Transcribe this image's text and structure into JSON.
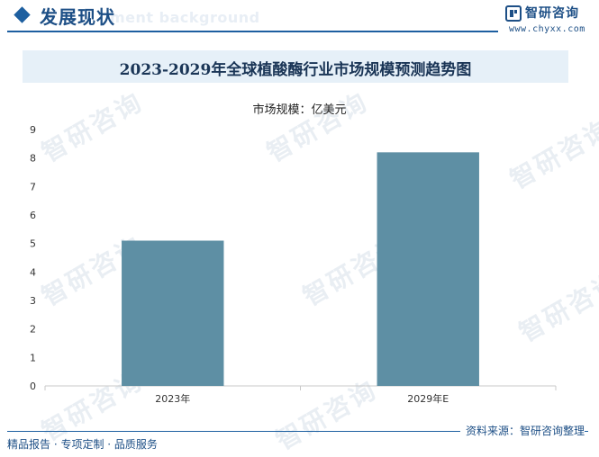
{
  "header": {
    "section_title": "发展现状",
    "section_bg_text": "ment background",
    "logo_text": "智研咨询",
    "logo_url": "www.chyxx.com"
  },
  "chart_data": {
    "type": "bar",
    "title": "2023-2029年全球植酸酶行业市场规模预测趋势图",
    "unit_label": "市场规模：亿美元",
    "categories": [
      "2023年",
      "2029年E"
    ],
    "values": [
      5.1,
      8.2
    ],
    "ylim": [
      0,
      9
    ],
    "yticks": [
      "0",
      "1",
      "2",
      "3",
      "4",
      "5",
      "6",
      "7",
      "8",
      "9"
    ],
    "bar_color": "#5e8fa4",
    "grid": false
  },
  "watermark_text": "智研咨询",
  "footer": {
    "source": "资料来源：智研咨询整理",
    "left_text": "精品报告 · 专项定制 · 品质服务"
  },
  "colors": {
    "brand": "#1d5fa0",
    "title_band": "#e6f0f8"
  }
}
